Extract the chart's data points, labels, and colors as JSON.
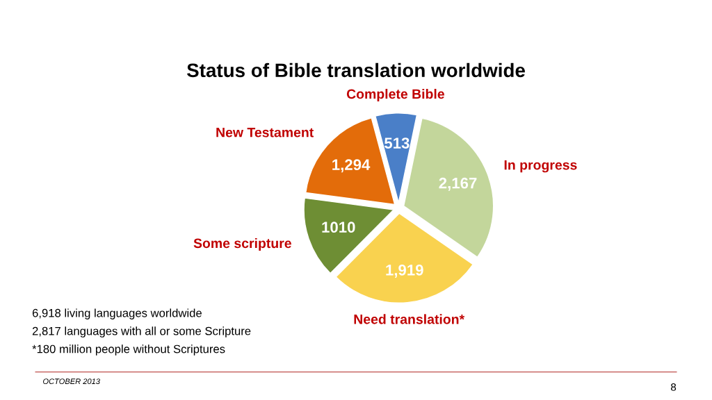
{
  "chart_data": {
    "type": "pie",
    "title": "Status of Bible translation worldwide",
    "categories": [
      "Complete Bible",
      "In progress",
      "Need translation*",
      "Some scripture",
      "New Testament"
    ],
    "values": [
      513,
      2167,
      1919,
      1010,
      1294
    ],
    "value_labels": [
      "513",
      "2,167",
      "1,919",
      "1010",
      "1,294"
    ],
    "colors": [
      "#4a7fc8",
      "#c3d69b",
      "#f9d24f",
      "#6e8e34",
      "#e36c0a"
    ],
    "annotations": [
      "6,918 living languages worldwide",
      "2,817 languages with all or some Scripture",
      "*180 million people without Scriptures",
      "OCTOBER 2013",
      "8"
    ]
  }
}
